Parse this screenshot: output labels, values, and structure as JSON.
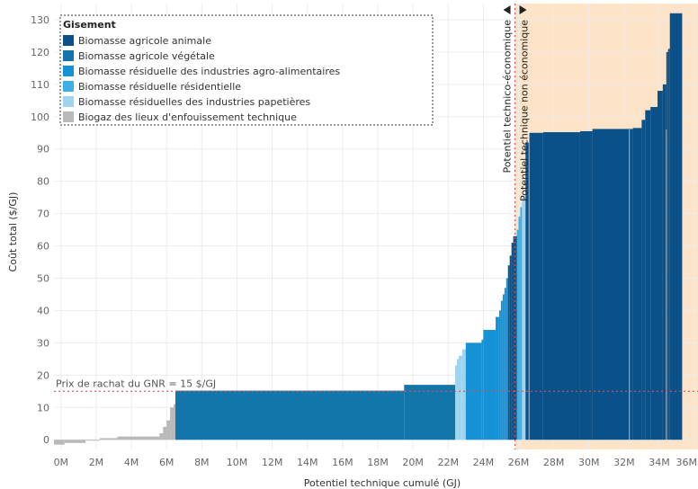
{
  "chart_data": {
    "type": "bar",
    "subtype": "supply-cost-curve (variable-width bars)",
    "title": "",
    "xlabel": "Potentiel technique cumulé (GJ)",
    "ylabel": "Coût total ($/GJ)",
    "xlim": [
      -0.4,
      36.2
    ],
    "ylim": [
      -3,
      135
    ],
    "x_ticks": [
      "0M",
      "2M",
      "4M",
      "6M",
      "8M",
      "10M",
      "12M",
      "14M",
      "16M",
      "18M",
      "20M",
      "22M",
      "24M",
      "26M",
      "28M",
      "30M",
      "32M",
      "34M",
      "36M"
    ],
    "y_ticks": [
      0,
      10,
      20,
      30,
      40,
      50,
      60,
      70,
      80,
      90,
      100,
      110,
      120,
      130
    ],
    "grid": true,
    "legend": {
      "title": "Gisement",
      "position": "top-left",
      "items": [
        {
          "label": "Biomasse agricole animale",
          "color": "#0b5189"
        },
        {
          "label": "Biomasse agricole végétale",
          "color": "#1475ab"
        },
        {
          "label": "Biomasse résiduelle des industries agro-alimentaires",
          "color": "#1592d6"
        },
        {
          "label": "Biomasse résiduelle résidentielle",
          "color": "#3fb0e6"
        },
        {
          "label": "Biomasse résiduelles des industries papetières",
          "color": "#9fd3ee"
        },
        {
          "label": "Biogaz des lieux d'enfouissement technique",
          "color": "#b9b9b9"
        }
      ]
    },
    "threshold_line": {
      "y": 15,
      "label": "Prix de rachat du GNR = 15 $/GJ",
      "color": "#d9534f"
    },
    "economic_limit": {
      "x": 25.8,
      "label_left": "Potentiel technico-économique",
      "label_right": "Potentiel technique non économique",
      "shade_color": "#fde3c7"
    },
    "steps": [
      {
        "x0": -0.4,
        "x1": 0.2,
        "y": -1.5,
        "cat": 5
      },
      {
        "x0": 0.2,
        "x1": 1.4,
        "y": -1,
        "cat": 5
      },
      {
        "x0": 1.4,
        "x1": 2.2,
        "y": 0,
        "cat": 5
      },
      {
        "x0": 2.2,
        "x1": 3.2,
        "y": 0.5,
        "cat": 5
      },
      {
        "x0": 3.2,
        "x1": 5.6,
        "y": 1,
        "cat": 5
      },
      {
        "x0": 5.6,
        "x1": 5.8,
        "y": 2,
        "cat": 5
      },
      {
        "x0": 5.8,
        "x1": 6.0,
        "y": 4,
        "cat": 5
      },
      {
        "x0": 6.0,
        "x1": 6.2,
        "y": 6,
        "cat": 5
      },
      {
        "x0": 6.2,
        "x1": 6.4,
        "y": 10,
        "cat": 5
      },
      {
        "x0": 6.4,
        "x1": 6.5,
        "y": 11,
        "cat": 5
      },
      {
        "x0": 6.5,
        "x1": 19.5,
        "y": 15.2,
        "cat": 1
      },
      {
        "x0": 19.5,
        "x1": 22.4,
        "y": 17,
        "cat": 1
      },
      {
        "x0": 22.4,
        "x1": 22.5,
        "y": 23,
        "cat": 4
      },
      {
        "x0": 22.5,
        "x1": 22.6,
        "y": 25,
        "cat": 4
      },
      {
        "x0": 22.6,
        "x1": 22.8,
        "y": 26,
        "cat": 4
      },
      {
        "x0": 22.8,
        "x1": 23.0,
        "y": 28,
        "cat": 4
      },
      {
        "x0": 23.0,
        "x1": 23.9,
        "y": 30,
        "cat": 2
      },
      {
        "x0": 23.9,
        "x1": 24.0,
        "y": 31,
        "cat": 2
      },
      {
        "x0": 24.0,
        "x1": 24.7,
        "y": 34,
        "cat": 2
      },
      {
        "x0": 24.7,
        "x1": 24.9,
        "y": 38,
        "cat": 2
      },
      {
        "x0": 24.9,
        "x1": 25.0,
        "y": 40,
        "cat": 2
      },
      {
        "x0": 25.0,
        "x1": 25.1,
        "y": 43,
        "cat": 2
      },
      {
        "x0": 25.1,
        "x1": 25.2,
        "y": 45,
        "cat": 2
      },
      {
        "x0": 25.2,
        "x1": 25.3,
        "y": 47,
        "cat": 2
      },
      {
        "x0": 25.3,
        "x1": 25.4,
        "y": 50,
        "cat": 2
      },
      {
        "x0": 25.4,
        "x1": 25.5,
        "y": 54,
        "cat": 0
      },
      {
        "x0": 25.5,
        "x1": 25.6,
        "y": 57,
        "cat": 0
      },
      {
        "x0": 25.6,
        "x1": 25.7,
        "y": 61,
        "cat": 0
      },
      {
        "x0": 25.7,
        "x1": 25.9,
        "y": 63,
        "cat": 0
      },
      {
        "x0": 25.9,
        "x1": 26.0,
        "y": 65,
        "cat": 3
      },
      {
        "x0": 26.0,
        "x1": 26.1,
        "y": 69,
        "cat": 3
      },
      {
        "x0": 26.1,
        "x1": 26.2,
        "y": 72,
        "cat": 3
      },
      {
        "x0": 26.2,
        "x1": 26.4,
        "y": 75,
        "cat": 4
      },
      {
        "x0": 26.4,
        "x1": 26.6,
        "y": 92,
        "cat": 0
      },
      {
        "x0": 26.6,
        "x1": 27.4,
        "y": 95,
        "cat": 0
      },
      {
        "x0": 27.4,
        "x1": 29.5,
        "y": 95.2,
        "cat": 0
      },
      {
        "x0": 29.5,
        "x1": 30.2,
        "y": 95.5,
        "cat": 0
      },
      {
        "x0": 30.2,
        "x1": 32.5,
        "y": 96.2,
        "cat": 0
      },
      {
        "x0": 32.5,
        "x1": 33.0,
        "y": 96.5,
        "cat": 0
      },
      {
        "x0": 33.0,
        "x1": 33.2,
        "y": 99,
        "cat": 0
      },
      {
        "x0": 33.2,
        "x1": 33.5,
        "y": 102,
        "cat": 0
      },
      {
        "x0": 33.5,
        "x1": 33.9,
        "y": 103,
        "cat": 0
      },
      {
        "x0": 33.9,
        "x1": 34.2,
        "y": 108,
        "cat": 0
      },
      {
        "x0": 34.2,
        "x1": 34.4,
        "y": 110,
        "cat": 0
      },
      {
        "x0": 34.4,
        "x1": 34.5,
        "y": 120,
        "cat": 0
      },
      {
        "x0": 34.5,
        "x1": 34.6,
        "y": 121,
        "cat": 0
      },
      {
        "x0": 34.6,
        "x1": 35.3,
        "y": 132,
        "cat": 0
      }
    ],
    "separators_x": [
      26.6,
      32.3,
      34.4
    ]
  }
}
